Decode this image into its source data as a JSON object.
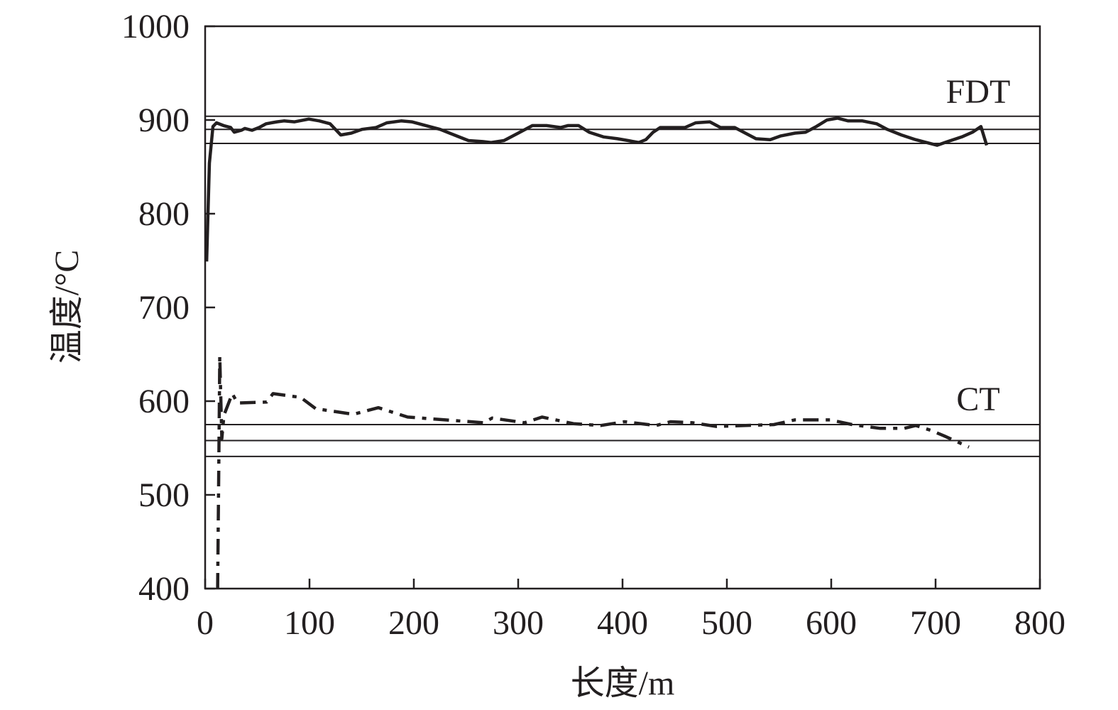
{
  "chart_data": {
    "type": "line",
    "title": "",
    "xlabel": "长度/m",
    "ylabel": "温度/°C",
    "xlim": [
      0,
      800
    ],
    "ylim": [
      400,
      1000
    ],
    "xticks": [
      0,
      100,
      200,
      300,
      400,
      500,
      600,
      700,
      800
    ],
    "yticks": [
      400,
      500,
      600,
      700,
      800,
      900,
      1000
    ],
    "grid": false,
    "colors": {
      "line": "#231f20",
      "axis": "#231f20"
    },
    "annotations": [
      {
        "text": "FDT",
        "target": "fdt"
      },
      {
        "text": "CT",
        "target": "ct"
      }
    ],
    "reference_lines": {
      "fdt": [
        904,
        890,
        875
      ],
      "ct": [
        575,
        558,
        541
      ]
    },
    "series": [
      {
        "id": "fdt",
        "style": "solid",
        "x": [
          1.4,
          4.1,
          7.5,
          10.9,
          17.7,
          24.5,
          27.9,
          34.7,
          38.1,
          44.9,
          51.7,
          58.5,
          68.7,
          75.5,
          85.7,
          99.3,
          109.5,
          119.7,
          129.9,
          140.1,
          150.3,
          163.9,
          174.1,
          187.8,
          198,
          211.6,
          225.2,
          238.8,
          252.4,
          266,
          274.1,
          286.4,
          300,
          313.6,
          327.2,
          340.8,
          347.6,
          357.8,
          368,
          381.6,
          395.2,
          405.4,
          415.6,
          422.4,
          429.3,
          436.1,
          446.3,
          459.9,
          470.1,
          483.7,
          493.9,
          507.5,
          517.7,
          527.9,
          541.5,
          551.7,
          565.3,
          575.5,
          585.7,
          595.9,
          606.1,
          616.3,
          629.9,
          643.5,
          653.7,
          667.3,
          680.9,
          691.2,
          701.4,
          711.6,
          725.2,
          735.4,
          743.5,
          749
        ],
        "y": [
          749,
          854,
          893,
          897,
          894,
          892,
          887,
          889,
          891,
          889,
          892,
          896,
          898,
          899,
          898,
          901,
          899,
          896,
          884,
          886,
          890,
          892,
          897,
          899,
          898,
          894,
          890,
          884,
          878,
          877,
          876,
          878,
          886,
          894,
          894,
          892,
          894,
          894,
          887,
          882,
          880,
          878,
          876,
          879,
          887,
          892,
          892,
          892,
          897,
          898,
          892,
          892,
          886,
          880,
          879,
          883,
          886,
          887,
          893,
          900,
          902,
          899,
          899,
          896,
          890,
          884,
          879,
          876,
          873,
          877,
          882,
          887,
          893,
          873
        ]
      },
      {
        "id": "ct",
        "style": "dash-dot",
        "x": [
          12,
          13,
          14,
          16,
          18,
          26,
          31,
          59,
          65,
          91.5,
          106,
          142,
          166,
          194,
          267,
          275,
          306,
          323,
          353,
          379,
          402,
          432,
          446,
          467,
          490,
          518,
          545,
          565,
          579,
          599,
          620,
          647,
          670,
          681,
          695,
          708,
          732
        ],
        "y": [
          400,
          520,
          648,
          560,
          585,
          608,
          598,
          599,
          608,
          604,
          592,
          586,
          593,
          583,
          577,
          582,
          577,
          583,
          576,
          574,
          578,
          574,
          578,
          577,
          573,
          574,
          575,
          580,
          580,
          580,
          575,
          571,
          571,
          574,
          569,
          563,
          551
        ]
      }
    ]
  }
}
